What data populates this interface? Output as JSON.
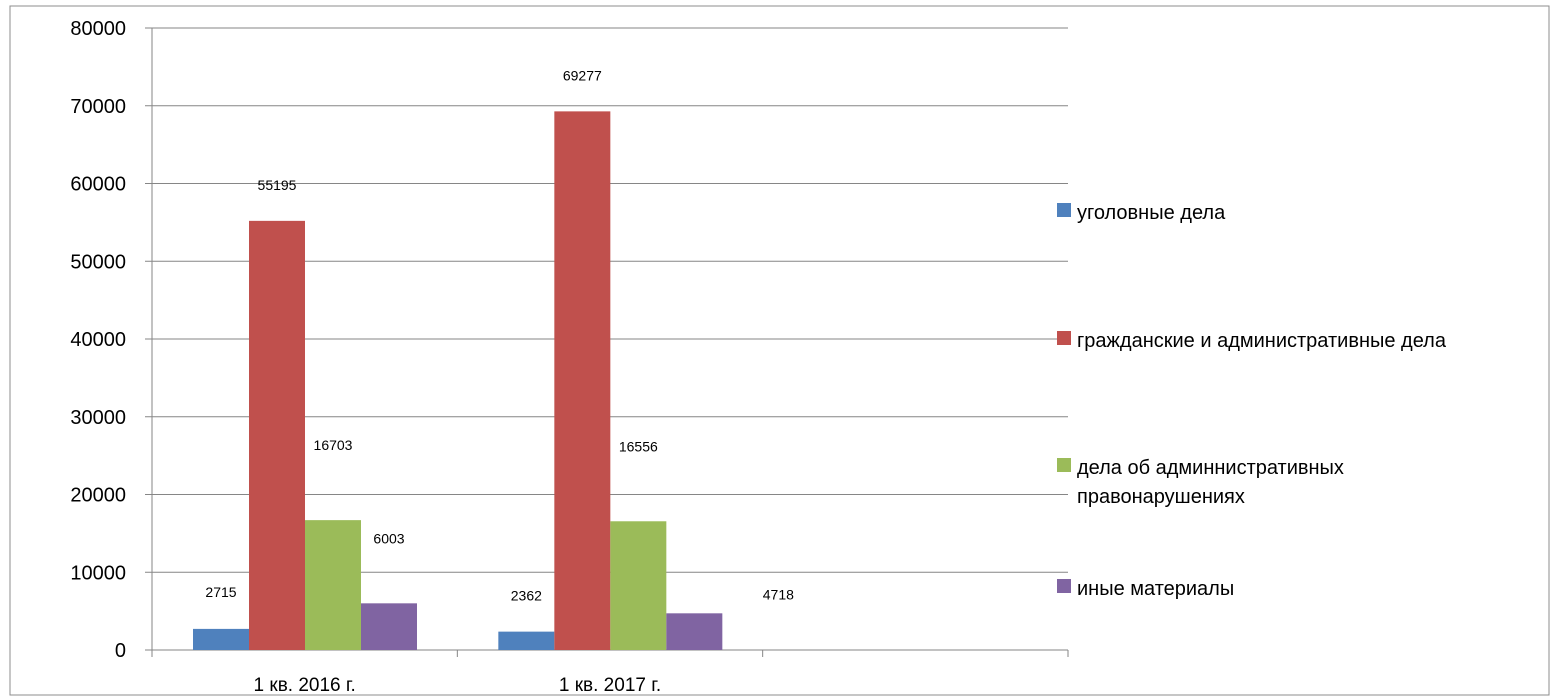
{
  "chart_data": {
    "type": "bar",
    "categories": [
      "1 кв. 2016 г.",
      "1 кв. 2017 г."
    ],
    "series": [
      {
        "name": "уголовные дела",
        "values": [
          2715,
          2362
        ],
        "color": "#4F81BD"
      },
      {
        "name": "гражданские и административные дела",
        "values": [
          55195,
          69277
        ],
        "color": "#C0504D"
      },
      {
        "name": "дела об админнистративных правонарушениях",
        "values": [
          16703,
          16556
        ],
        "color": "#9BBB59"
      },
      {
        "name": "иные материалы",
        "values": [
          6003,
          4718
        ],
        "color": "#8064A2"
      }
    ],
    "ylim": [
      0,
      80000
    ],
    "yticks": [
      0,
      10000,
      20000,
      30000,
      40000,
      50000,
      60000,
      70000,
      80000
    ],
    "grid": true,
    "legend_position": "right",
    "empty_category_slots": 1
  }
}
